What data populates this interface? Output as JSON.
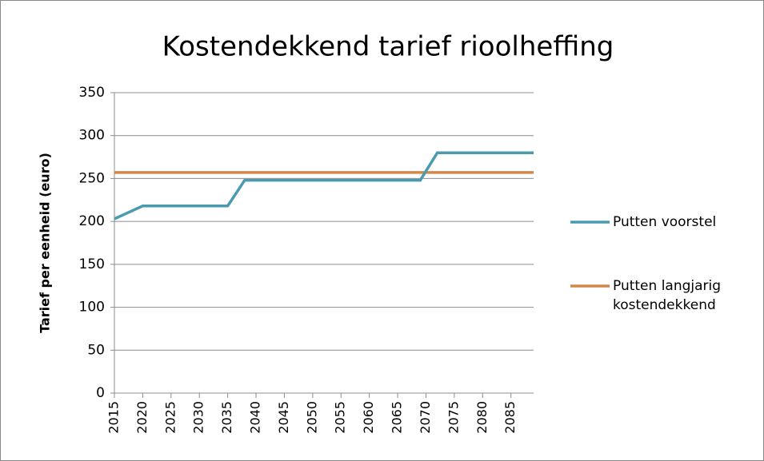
{
  "chart_data": {
    "type": "line",
    "title": "Kostendekkend tarief rioolheffing",
    "y_label": "Tarief per eenheid (euro)",
    "x": [
      2015,
      2020,
      2035,
      2038,
      2069,
      2072,
      2089
    ],
    "series": [
      {
        "name": "Putten voorstel",
        "color": "#4a9bb0",
        "values": [
          203,
          218,
          218,
          248,
          248,
          280,
          280
        ]
      },
      {
        "name": "Putten langjarig kostendekkend",
        "color": "#d0894a",
        "values": [
          257,
          257,
          257,
          257,
          257,
          257,
          257
        ]
      }
    ],
    "xlim": [
      2015,
      2089
    ],
    "xticks": [
      2015,
      2020,
      2025,
      2030,
      2035,
      2040,
      2045,
      2050,
      2055,
      2060,
      2065,
      2070,
      2075,
      2080,
      2085
    ],
    "ylim": [
      0,
      350
    ],
    "yticks": [
      0,
      50,
      100,
      150,
      200,
      250,
      300,
      350
    ],
    "grid": true,
    "legend": "right"
  }
}
